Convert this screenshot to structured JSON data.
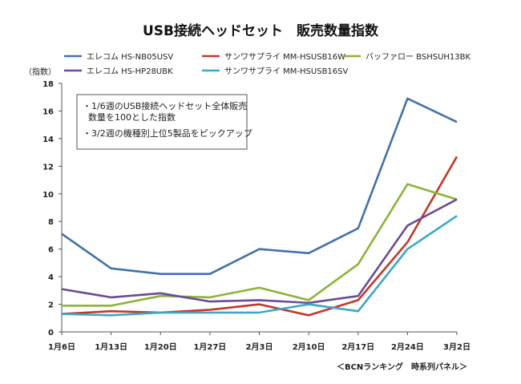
{
  "chart_data": {
    "type": "line",
    "title": "USB接続ヘッドセット　販売数量指数",
    "ylabel": "（指数）",
    "xlabel": "",
    "categories": [
      "1月6日",
      "1月13日",
      "1月20日",
      "1月27日",
      "2月3日",
      "2月10日",
      "2月17日",
      "2月24日",
      "3月2日"
    ],
    "ylim": [
      0,
      18
    ],
    "yticks": [
      0,
      2,
      4,
      6,
      8,
      10,
      12,
      14,
      16,
      18
    ],
    "grid": false,
    "legend_position": "top",
    "series": [
      {
        "name": "エレコム HS-NB05USV",
        "color": "#4472a8",
        "values": [
          7.1,
          4.6,
          4.2,
          4.2,
          6.0,
          5.7,
          7.5,
          16.9,
          15.2
        ]
      },
      {
        "name": "サンワサプライ MM-HSUSB16W",
        "color": "#c0392b",
        "values": [
          1.3,
          1.5,
          1.4,
          1.6,
          2.0,
          1.2,
          2.3,
          6.5,
          12.7
        ]
      },
      {
        "name": "バッファロー BSHSUH13BK",
        "color": "#8db33a",
        "values": [
          1.9,
          1.9,
          2.6,
          2.5,
          3.2,
          2.3,
          4.9,
          10.7,
          9.6
        ]
      },
      {
        "name": "エレコム HS-HP28UBK",
        "color": "#6a4c93",
        "values": [
          3.1,
          2.5,
          2.8,
          2.2,
          2.3,
          2.1,
          2.6,
          7.7,
          9.6
        ]
      },
      {
        "name": "サンワサプライ MM-HSUSB16SV",
        "color": "#3aa8c8",
        "values": [
          1.3,
          1.2,
          1.4,
          1.4,
          1.4,
          2.0,
          1.5,
          6.0,
          8.4
        ]
      }
    ],
    "annotations": [
      "・1/6週のUSB接続ヘッドセット全体販売",
      "数量を100とした指数",
      "・3/2週の機種別上位5製品をピックアップ"
    ],
    "source": "＜BCNランキング　時系列パネル＞"
  }
}
